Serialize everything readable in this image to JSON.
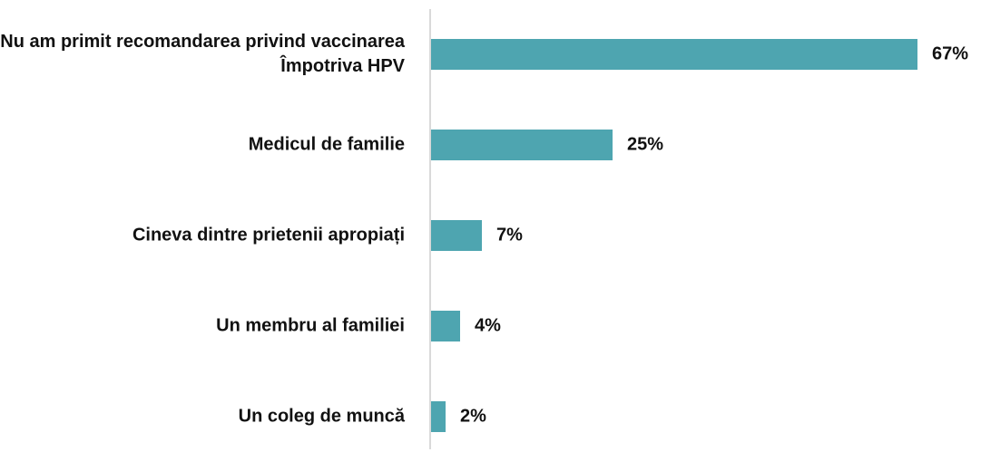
{
  "chart_data": {
    "type": "bar",
    "orientation": "horizontal",
    "categories": [
      "Nu am primit recomandarea privind vaccinarea Împotriva HPV",
      "Medicul de familie",
      "Cineva dintre prietenii apropiați",
      "Un membru al familiei",
      "Un coleg de muncă"
    ],
    "values": [
      67,
      25,
      7,
      4,
      2
    ],
    "value_labels": [
      "67%",
      "25%",
      "7%",
      "4%",
      "2%"
    ],
    "color": "#4ea5b0"
  }
}
